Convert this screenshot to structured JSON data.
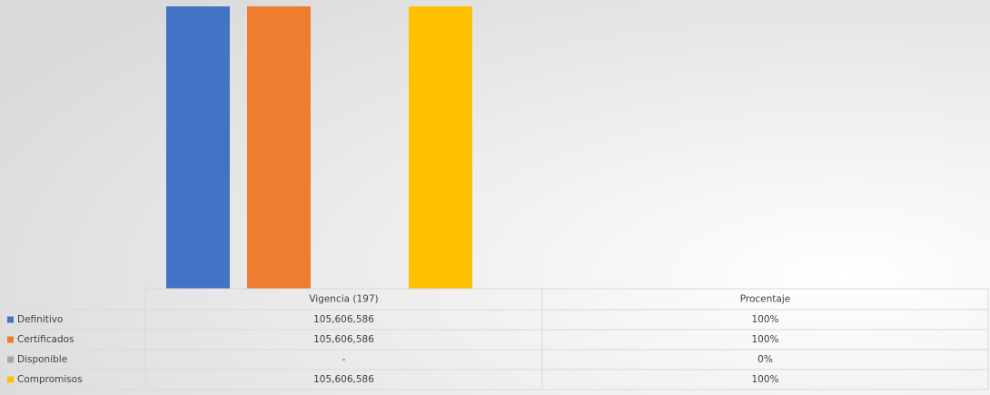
{
  "chart_data": {
    "type": "bar",
    "categories": [
      "Vigencia (197)",
      "Procentaje"
    ],
    "series": [
      {
        "name": "Definitivo",
        "color": "#4472c4",
        "values": [
          105606586,
          100
        ],
        "value_labels": [
          "105,606,586",
          "100%"
        ]
      },
      {
        "name": "Certificados",
        "color": "#ed7d31",
        "values": [
          105606586,
          100
        ],
        "value_labels": [
          "105,606,586",
          "100%"
        ]
      },
      {
        "name": "Disponible",
        "color": "#a5a5a5",
        "values": [
          0,
          0
        ],
        "value_labels": [
          "-",
          "0%"
        ]
      },
      {
        "name": "Compromisos",
        "color": "#ffc000",
        "values": [
          105606586,
          100
        ],
        "value_labels": [
          "105,606,586",
          "100%"
        ]
      }
    ]
  }
}
